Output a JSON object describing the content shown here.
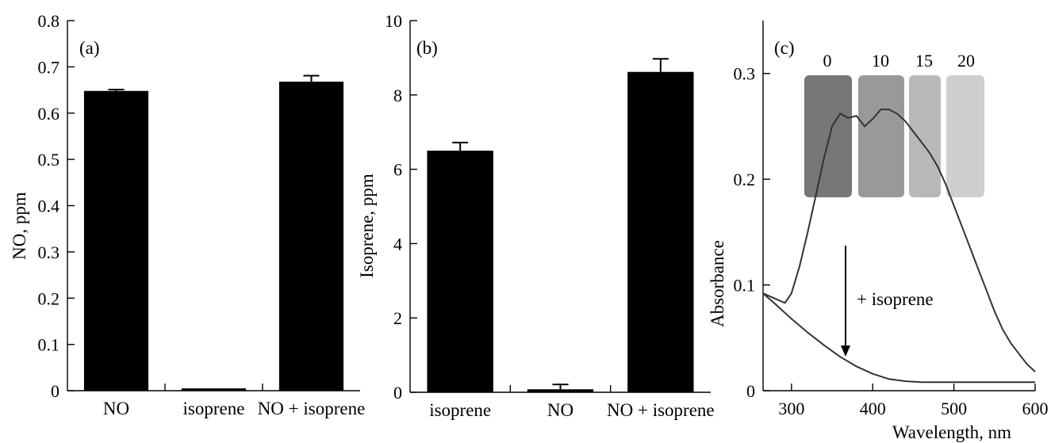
{
  "chart_data": [
    {
      "type": "bar",
      "panel_label": "(a)",
      "ylabel": "NO, ppm",
      "ylim": [
        0,
        0.8
      ],
      "yticks": [
        "0",
        "0.1",
        "0.2",
        "0.3",
        "0.4",
        "0.5",
        "0.6",
        "0.7",
        "0.8"
      ],
      "categories": [
        "NO",
        "isoprene",
        "NO + isoprene"
      ],
      "values": [
        0.648,
        0.005,
        0.668
      ],
      "errors": [
        0.003,
        0.0,
        0.013
      ],
      "color": "#000000"
    },
    {
      "type": "bar",
      "panel_label": "(b)",
      "ylabel": "Isoprene, ppm",
      "ylim": [
        0,
        10
      ],
      "yticks": [
        "0",
        "2",
        "4",
        "6",
        "8",
        "10"
      ],
      "categories": [
        "isoprene",
        "NO",
        "NO + isoprene"
      ],
      "values": [
        6.5,
        0.08,
        8.62
      ],
      "errors": [
        0.22,
        0.13,
        0.35
      ],
      "color": "#000000"
    },
    {
      "type": "line",
      "panel_label": "(c)",
      "xlabel": "Wavelength, nm",
      "ylabel": "Absorbance",
      "xlim": [
        265,
        600
      ],
      "ylim": [
        0,
        0.35
      ],
      "xticks": [
        "300",
        "400",
        "500",
        "600"
      ],
      "yticks": [
        "0",
        "0.1",
        "0.2",
        "0.3"
      ],
      "annotation": "+ isoprene",
      "inset_labels": [
        "0",
        "10",
        "15",
        "20"
      ],
      "series": [
        {
          "x": [
            265,
            280,
            292,
            300,
            310,
            320,
            330,
            340,
            350,
            360,
            370,
            380,
            390,
            400,
            410,
            420,
            430,
            440,
            450,
            460,
            470,
            480,
            490,
            500,
            510,
            520,
            530,
            540,
            550,
            560,
            570,
            580,
            590,
            600
          ],
          "y": [
            0.092,
            0.087,
            0.083,
            0.092,
            0.118,
            0.15,
            0.185,
            0.22,
            0.25,
            0.262,
            0.258,
            0.26,
            0.25,
            0.257,
            0.266,
            0.266,
            0.262,
            0.255,
            0.245,
            0.235,
            0.225,
            0.212,
            0.195,
            0.175,
            0.155,
            0.135,
            0.115,
            0.095,
            0.075,
            0.058,
            0.045,
            0.035,
            0.025,
            0.018
          ]
        },
        {
          "x": [
            265,
            280,
            300,
            320,
            340,
            360,
            380,
            400,
            420,
            440,
            460,
            480,
            500,
            520,
            540,
            560,
            580,
            600
          ],
          "y": [
            0.092,
            0.082,
            0.068,
            0.055,
            0.043,
            0.032,
            0.023,
            0.016,
            0.011,
            0.009,
            0.008,
            0.008,
            0.008,
            0.008,
            0.008,
            0.008,
            0.008,
            0.008
          ]
        }
      ]
    }
  ]
}
